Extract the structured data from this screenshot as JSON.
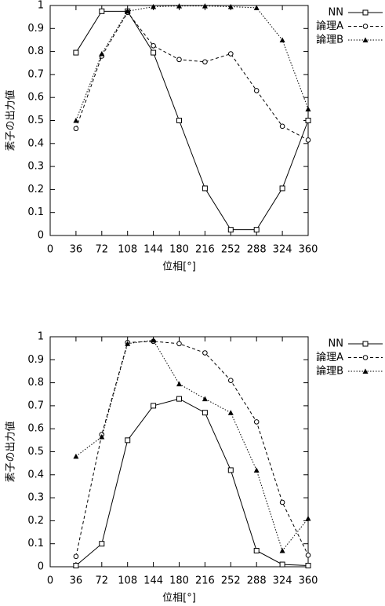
{
  "chart_data": [
    {
      "type": "line",
      "x_label": "位相[°]",
      "y_label": "素子の出力値",
      "x": [
        36,
        72,
        108,
        144,
        180,
        216,
        252,
        288,
        324,
        360
      ],
      "xlim": [
        0,
        360
      ],
      "xticks": [
        0,
        36,
        72,
        108,
        144,
        180,
        216,
        252,
        288,
        324,
        360
      ],
      "ylim": [
        0,
        1
      ],
      "yticks": [
        0,
        0.1,
        0.2,
        0.3,
        0.4,
        0.5,
        0.6,
        0.7,
        0.8,
        0.9,
        1
      ],
      "grid": false,
      "legend": "outside-top-right",
      "series": [
        {
          "name": "NN",
          "color": "#000000",
          "values": [
            0.795,
            0.975,
            0.975,
            0.795,
            0.5,
            0.205,
            0.025,
            0.025,
            0.205,
            0.5
          ]
        },
        {
          "name": "論理A",
          "color": "#000000",
          "values": [
            0.465,
            0.78,
            0.97,
            0.825,
            0.765,
            0.755,
            0.79,
            0.63,
            0.475,
            0.415
          ]
        },
        {
          "name": "論理B",
          "color": "#000000",
          "values": [
            0.5,
            0.79,
            0.975,
            0.995,
            0.998,
            0.998,
            0.995,
            0.99,
            0.85,
            0.55
          ]
        }
      ]
    },
    {
      "type": "line",
      "x_label": "位相[°]",
      "y_label": "素子の出力値",
      "x": [
        36,
        72,
        108,
        144,
        180,
        216,
        252,
        288,
        324,
        360
      ],
      "xlim": [
        0,
        360
      ],
      "xticks": [
        0,
        36,
        72,
        108,
        144,
        180,
        216,
        252,
        288,
        324,
        360
      ],
      "ylim": [
        0,
        1
      ],
      "yticks": [
        0,
        0.1,
        0.2,
        0.3,
        0.4,
        0.5,
        0.6,
        0.7,
        0.8,
        0.9,
        1
      ],
      "grid": false,
      "legend": "outside-top-right",
      "series": [
        {
          "name": "NN",
          "color": "#000000",
          "values": [
            0.005,
            0.1,
            0.55,
            0.7,
            0.73,
            0.67,
            0.42,
            0.07,
            0.01,
            0.005
          ]
        },
        {
          "name": "論理A",
          "color": "#000000",
          "values": [
            0.045,
            0.575,
            0.975,
            0.98,
            0.97,
            0.93,
            0.81,
            0.63,
            0.28,
            0.05
          ]
        },
        {
          "name": "論理B",
          "color": "#000000",
          "values": [
            0.48,
            0.565,
            0.97,
            0.985,
            0.795,
            0.73,
            0.67,
            0.42,
            0.07,
            0.21
          ]
        }
      ]
    }
  ]
}
